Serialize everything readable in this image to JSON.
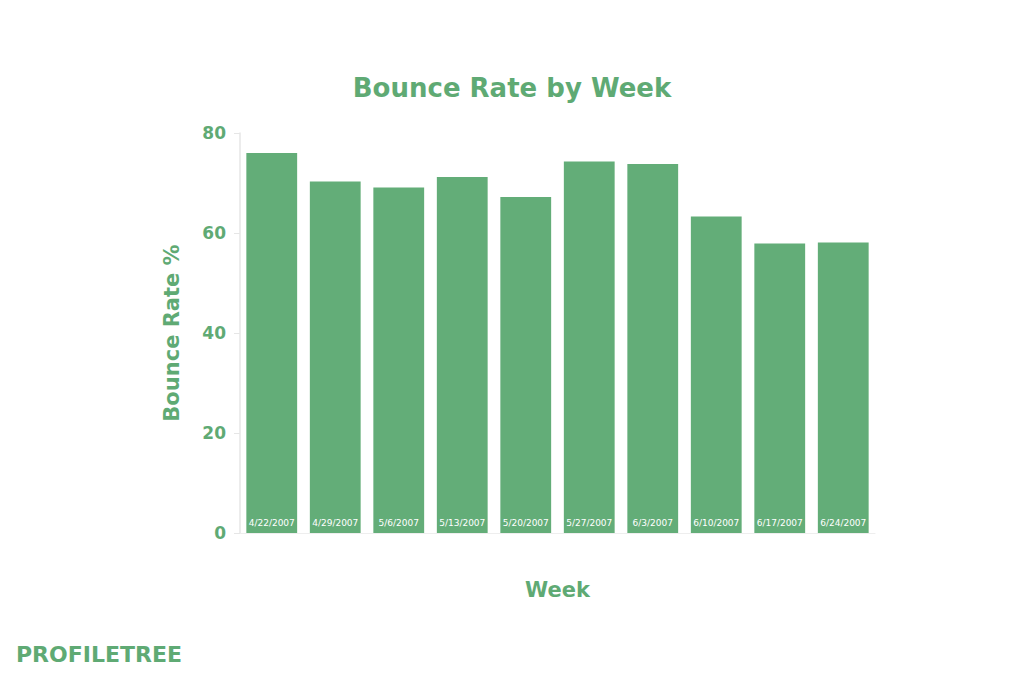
{
  "chart_data": {
    "type": "bar",
    "title": "Bounce Rate by Week",
    "x_label": "Week",
    "y_label": "Bounce Rate %",
    "categories": [
      "4/22/2007",
      "4/29/2007",
      "5/6/2007",
      "5/13/2007",
      "5/20/2007",
      "5/27/2007",
      "6/3/2007",
      "6/10/2007",
      "6/17/2007",
      "6/24/2007"
    ],
    "values": [
      76,
      70.3,
      69.1,
      71.2,
      67.2,
      74.3,
      73.8,
      63.3,
      57.9,
      58.1
    ],
    "color": "#63ad78",
    "ylim": [
      0,
      80
    ],
    "yticks": [
      0,
      20,
      40,
      60,
      80
    ],
    "grid": false,
    "annotation": "PROFILETREE"
  }
}
